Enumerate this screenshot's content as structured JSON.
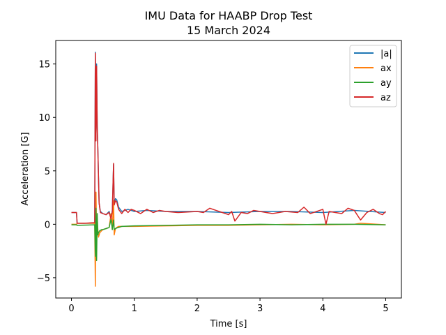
{
  "chart_data": {
    "type": "line",
    "title": "IMU Data for HAABP Drop Test",
    "subtitle": "15 March 2024",
    "xlabel": "Time [s]",
    "ylabel": "Acceleration [G]",
    "xlim": [
      -0.25,
      5.25
    ],
    "ylim": [
      -6.9,
      17.2
    ],
    "xticks": [
      0,
      1,
      2,
      3,
      4,
      5
    ],
    "yticks": [
      -5,
      0,
      5,
      10,
      15
    ],
    "grid": false,
    "legend_position": "top-right",
    "series": [
      {
        "name": "|a|",
        "color": "#1f77b4",
        "x": [
          0,
          0.08,
          0.09,
          0.37,
          0.38,
          0.39,
          0.4,
          0.41,
          0.42,
          0.43,
          0.44,
          0.46,
          0.5,
          0.55,
          0.6,
          0.63,
          0.65,
          0.67,
          0.68,
          0.7,
          0.72,
          0.75,
          0.8,
          0.9,
          1.0,
          1.2,
          1.5,
          2.0,
          2.5,
          3.0,
          3.5,
          4.0,
          4.5,
          5.0
        ],
        "y": [
          1.1,
          1.1,
          0.1,
          0.1,
          16.1,
          8.0,
          15.0,
          9.3,
          7.0,
          4.5,
          2.0,
          1.2,
          1.0,
          0.9,
          1.2,
          0.5,
          1.3,
          5.6,
          1.9,
          2.4,
          2.3,
          1.6,
          1.2,
          1.4,
          1.2,
          1.3,
          1.2,
          1.2,
          1.1,
          1.2,
          1.2,
          1.1,
          1.3,
          1.1
        ]
      },
      {
        "name": "ax",
        "color": "#ff7f0e",
        "x": [
          0,
          0.08,
          0.09,
          0.37,
          0.38,
          0.39,
          0.4,
          0.41,
          0.42,
          0.43,
          0.45,
          0.48,
          0.5,
          0.55,
          0.6,
          0.63,
          0.65,
          0.67,
          0.68,
          0.7,
          0.72,
          0.75,
          0.8,
          1.0,
          1.5,
          2.0,
          2.5,
          3.0,
          3.5,
          4.0,
          4.5,
          4.6,
          5.0
        ],
        "y": [
          0.0,
          0.0,
          0.1,
          0.1,
          -5.8,
          3.0,
          -1.0,
          0.5,
          -0.5,
          -1.2,
          -0.8,
          -0.6,
          -0.5,
          -0.4,
          -0.3,
          1.0,
          -0.5,
          2.2,
          -1.0,
          -0.4,
          -0.3,
          -0.2,
          -0.2,
          -0.2,
          -0.15,
          -0.1,
          -0.1,
          -0.05,
          0.0,
          -0.05,
          0.0,
          0.1,
          -0.05
        ]
      },
      {
        "name": "ay",
        "color": "#2ca02c",
        "x": [
          0,
          0.08,
          0.09,
          0.37,
          0.38,
          0.39,
          0.4,
          0.41,
          0.42,
          0.43,
          0.45,
          0.48,
          0.5,
          0.55,
          0.6,
          0.63,
          0.65,
          0.67,
          0.68,
          0.7,
          0.72,
          0.75,
          0.8,
          1.0,
          1.5,
          2.0,
          2.5,
          3.0,
          3.5,
          4.0,
          4.5,
          5.0
        ],
        "y": [
          -0.05,
          -0.05,
          -0.1,
          -0.05,
          -3.0,
          1.5,
          -3.4,
          1.0,
          -1.0,
          -0.8,
          -0.6,
          -0.5,
          -0.5,
          -0.4,
          -0.3,
          0.5,
          -0.5,
          0.4,
          -0.5,
          -0.4,
          -0.35,
          -0.3,
          -0.2,
          -0.15,
          -0.1,
          -0.05,
          -0.05,
          0.0,
          -0.05,
          0.0,
          0.0,
          -0.05
        ]
      },
      {
        "name": "az",
        "color": "#d62728",
        "x": [
          0,
          0.05,
          0.08,
          0.09,
          0.2,
          0.37,
          0.38,
          0.39,
          0.4,
          0.41,
          0.42,
          0.43,
          0.44,
          0.46,
          0.5,
          0.55,
          0.6,
          0.63,
          0.65,
          0.67,
          0.68,
          0.7,
          0.72,
          0.75,
          0.8,
          0.85,
          0.9,
          0.95,
          1.0,
          1.1,
          1.2,
          1.3,
          1.4,
          1.5,
          1.7,
          2.0,
          2.1,
          2.2,
          2.3,
          2.4,
          2.5,
          2.55,
          2.6,
          2.7,
          2.8,
          2.9,
          3.0,
          3.2,
          3.4,
          3.6,
          3.7,
          3.8,
          4.0,
          4.05,
          4.1,
          4.3,
          4.4,
          4.5,
          4.6,
          4.7,
          4.8,
          4.9,
          4.95,
          5.0
        ],
        "y": [
          1.1,
          1.1,
          1.1,
          0.1,
          0.1,
          0.15,
          16.0,
          7.8,
          14.8,
          9.0,
          7.0,
          4.4,
          2.0,
          1.1,
          1.0,
          0.9,
          1.1,
          0.5,
          1.2,
          5.7,
          1.8,
          2.2,
          2.1,
          1.4,
          1.0,
          1.4,
          1.1,
          1.4,
          1.3,
          1.0,
          1.4,
          1.1,
          1.3,
          1.2,
          1.1,
          1.2,
          1.1,
          1.5,
          1.3,
          1.1,
          0.9,
          1.2,
          0.3,
          1.1,
          1.0,
          1.3,
          1.2,
          1.0,
          1.2,
          1.1,
          1.6,
          1.0,
          1.4,
          0.0,
          1.2,
          1.0,
          1.5,
          1.3,
          0.4,
          1.1,
          1.4,
          1.0,
          0.9,
          1.2
        ]
      }
    ]
  }
}
